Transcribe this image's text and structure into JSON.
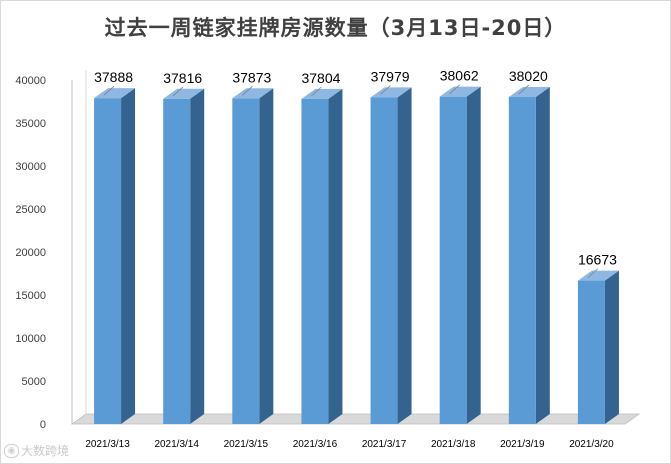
{
  "chart_data": {
    "type": "bar",
    "title": "过去一周链家挂牌房源数量（3月13日-20日）",
    "categories": [
      "2021/3/13",
      "2021/3/14",
      "2021/3/15",
      "2021/3/16",
      "2021/3/17",
      "2021/3/18",
      "2021/3/19",
      "2021/3/20"
    ],
    "values": [
      37888,
      37816,
      37873,
      37804,
      37979,
      38062,
      38020,
      16673
    ],
    "value_labels": [
      "37888",
      "37816",
      "37873",
      "37804",
      "37979",
      "38062",
      "38020",
      "16673"
    ],
    "y_ticks": [
      0,
      5000,
      10000,
      15000,
      20000,
      25000,
      30000,
      35000,
      40000
    ],
    "y_tick_labels": [
      "0",
      "5000",
      "10000",
      "15000",
      "20000",
      "25000",
      "30000",
      "35000",
      "40000"
    ],
    "ylim": [
      0,
      40000
    ],
    "xlabel": "",
    "ylabel": "",
    "grid": false,
    "legend": "none",
    "style": "3d-column",
    "colors": {
      "front": "#5b9bd5",
      "side": "#35638f",
      "top": "#8eb8e2",
      "wall": "#ffffff",
      "floor": "#d9d9d9"
    }
  },
  "watermark": {
    "text": "大数跨境",
    "icon": "weibo-style-icon"
  }
}
